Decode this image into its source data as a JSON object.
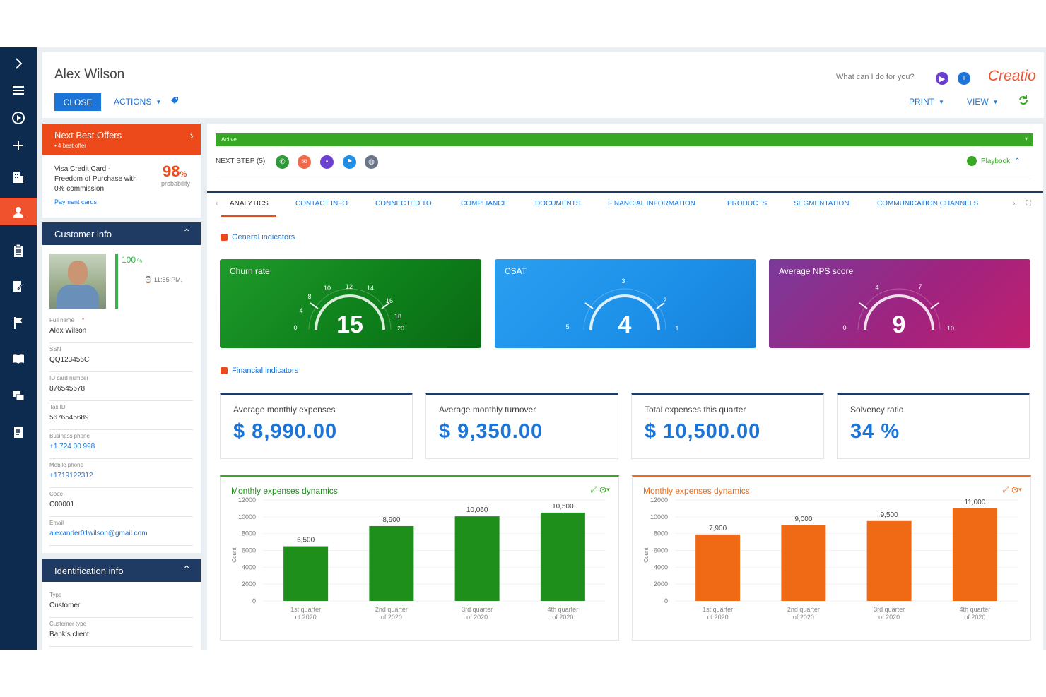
{
  "colors": {
    "brand": "#f0522d",
    "primary": "#1b74d8",
    "navy": "#0d2a4f",
    "green": "#37a724",
    "chart_green": "#1e8f1a",
    "chart_orange": "#f06a16",
    "csat": "#1c8fe8",
    "nps": "#a0237f"
  },
  "sidebar": {
    "items": [
      {
        "icon": "chevron-right-icon"
      },
      {
        "icon": "menu-icon"
      },
      {
        "icon": "play-icon"
      },
      {
        "icon": "plus-icon"
      },
      {
        "icon": "building-icon"
      },
      {
        "icon": "person-icon",
        "active": true
      },
      {
        "icon": "clipboard-icon"
      },
      {
        "icon": "edit-icon"
      },
      {
        "icon": "flag-icon"
      },
      {
        "icon": "book-icon"
      },
      {
        "icon": "chat-icon"
      },
      {
        "icon": "document-icon"
      }
    ]
  },
  "header": {
    "title": "Alex Wilson",
    "close": "CLOSE",
    "actions": "ACTIONS",
    "search_placeholder": "What can I do for you?",
    "print": "PRINT",
    "view": "VIEW",
    "logo": "Creatio"
  },
  "nbo": {
    "title": "Next Best Offers",
    "subtitle": "• 4 best offer",
    "offer": "Visa Credit Card - Freedom of Purchase with 0% commission",
    "percent": "98",
    "percent_unit": "%",
    "probability": "probability",
    "link": "Payment cards"
  },
  "customer_info": {
    "title": "Customer info",
    "completeness": "100",
    "completeness_unit": " %",
    "time": "11:55 PM,",
    "fields": [
      {
        "label": "Full name",
        "value": "Alex Wilson",
        "required": true
      },
      {
        "label": "SSN",
        "value": "QQ123456C"
      },
      {
        "label": "ID card number",
        "value": "876545678"
      },
      {
        "label": "Tax ID",
        "value": "5676545689"
      },
      {
        "label": "Business phone",
        "value": "+1 724 00 998",
        "link": true
      },
      {
        "label": "Mobile phone",
        "value": "+1719122312",
        "link": true
      },
      {
        "label": "Code",
        "value": "C00001"
      },
      {
        "label": "Email",
        "value": "alexander01wilson@gmail.com",
        "link": true
      }
    ]
  },
  "identification_info": {
    "title": "Identification info",
    "fields": [
      {
        "label": "Type",
        "value": "Customer"
      },
      {
        "label": "Customer type",
        "value": "Bank's client"
      }
    ]
  },
  "stage": {
    "label": "Active"
  },
  "next_step": {
    "label": "NEXT STEP (5)",
    "icons": [
      "phone-icon",
      "email-icon",
      "chat-icon",
      "flag-icon",
      "globe-icon"
    ]
  },
  "playbook": "Playbook",
  "tabs": [
    "ANALYTICS",
    "CONTACT INFO",
    "CONNECTED TO",
    "COMPLIANCE",
    "DOCUMENTS",
    "FINANCIAL INFORMATION",
    "PRODUCTS",
    "SEGMENTATION",
    "COMMUNICATION CHANNELS"
  ],
  "general_indicators": {
    "title": "General indicators",
    "gauges": [
      {
        "title": "Churn rate",
        "value": "15",
        "ticks": [
          "0",
          "4",
          "8",
          "10",
          "12",
          "14",
          "16",
          "18",
          "20"
        ]
      },
      {
        "title": "CSAT",
        "value": "4",
        "ticks": [
          "5",
          "3",
          "2",
          "1"
        ]
      },
      {
        "title": "Average NPS score",
        "value": "9",
        "ticks": [
          "0",
          "4",
          "7",
          "10"
        ]
      }
    ]
  },
  "financial_indicators": {
    "title": "Financial indicators",
    "kpis": [
      {
        "title": "Average monthly expenses",
        "value": "$ 8,990.00"
      },
      {
        "title": "Average monthly turnover",
        "value": "$ 9,350.00"
      },
      {
        "title": "Total expenses this quarter",
        "value": "$ 10,500.00"
      },
      {
        "title": "Solvency ratio",
        "value": "34 %"
      }
    ]
  },
  "chart_data": [
    {
      "type": "bar",
      "title": "Monthly expenses dynamics",
      "ylabel": "Count",
      "categories": [
        "1st quarter of 2020",
        "2nd quarter of 2020",
        "3rd quarter of 2020",
        "4th quarter of 2020"
      ],
      "values": [
        6500,
        8900,
        10060,
        10500
      ],
      "value_labels": [
        "6,500",
        "8,900",
        "10,060",
        "10,500"
      ],
      "ylim": [
        0,
        12000
      ],
      "yticks": [
        0,
        2000,
        4000,
        6000,
        8000,
        10000,
        12000
      ],
      "color": "#1e8f1a"
    },
    {
      "type": "bar",
      "title": "Monthly expenses dynamics",
      "ylabel": "Count",
      "categories": [
        "1st quarter of 2020",
        "2nd quarter of 2020",
        "3rd quarter of 2020",
        "4th quarter of 2020"
      ],
      "values": [
        7900,
        9000,
        9500,
        11000
      ],
      "value_labels": [
        "7,900",
        "9,000",
        "9,500",
        "11,000"
      ],
      "ylim": [
        0,
        12000
      ],
      "yticks": [
        0,
        2000,
        4000,
        6000,
        8000,
        10000,
        12000
      ],
      "color": "#f06a16"
    }
  ]
}
